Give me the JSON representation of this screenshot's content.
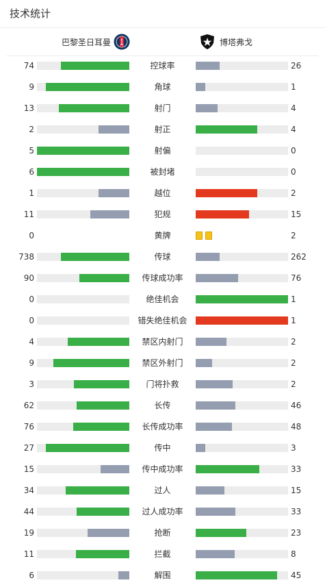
{
  "header": {
    "title": "技术统计"
  },
  "teams": {
    "home": {
      "name": "巴黎圣日耳曼"
    },
    "away": {
      "name": "博塔弗戈"
    }
  },
  "colors": {
    "green": "#3aaf47",
    "grey": "#959eb0",
    "red": "#e3391f",
    "track": "#ececec",
    "yellow": "#f6c21a"
  },
  "stats": [
    {
      "label": "控球率",
      "home": "74",
      "away": "26",
      "homeShare": 0.74,
      "awayShare": 0.26,
      "homeColor": "green",
      "awayColor": "grey"
    },
    {
      "label": "角球",
      "home": "9",
      "away": "1",
      "homeShare": 0.9,
      "awayShare": 0.1,
      "homeColor": "green",
      "awayColor": "grey"
    },
    {
      "label": "射门",
      "home": "13",
      "away": "4",
      "homeShare": 0.76,
      "awayShare": 0.24,
      "homeColor": "green",
      "awayColor": "grey"
    },
    {
      "label": "射正",
      "home": "2",
      "away": "4",
      "homeShare": 0.33,
      "awayShare": 0.67,
      "homeColor": "grey",
      "awayColor": "green"
    },
    {
      "label": "射偏",
      "home": "5",
      "away": "0",
      "homeShare": 1.0,
      "awayShare": 0.0,
      "homeColor": "green",
      "awayColor": "grey"
    },
    {
      "label": "被封堵",
      "home": "6",
      "away": "0",
      "homeShare": 1.0,
      "awayShare": 0.0,
      "homeColor": "green",
      "awayColor": "grey"
    },
    {
      "label": "越位",
      "home": "1",
      "away": "2",
      "homeShare": 0.33,
      "awayShare": 0.67,
      "homeColor": "grey",
      "awayColor": "red"
    },
    {
      "label": "犯规",
      "home": "11",
      "away": "15",
      "homeShare": 0.42,
      "awayShare": 0.58,
      "homeColor": "grey",
      "awayColor": "red"
    },
    {
      "label": "黄牌",
      "home": "0",
      "away": "2",
      "cards": 2
    },
    {
      "label": "传球",
      "home": "738",
      "away": "262",
      "homeShare": 0.74,
      "awayShare": 0.26,
      "homeColor": "green",
      "awayColor": "grey"
    },
    {
      "label": "传球成功率",
      "home": "90",
      "away": "76",
      "homeShare": 0.54,
      "awayShare": 0.46,
      "homeColor": "green",
      "awayColor": "grey"
    },
    {
      "label": "绝佳机会",
      "home": "0",
      "away": "1",
      "homeShare": 0.0,
      "awayShare": 1.0,
      "homeColor": "grey",
      "awayColor": "green"
    },
    {
      "label": "错失绝佳机会",
      "home": "0",
      "away": "1",
      "homeShare": 0.0,
      "awayShare": 1.0,
      "homeColor": "grey",
      "awayColor": "red"
    },
    {
      "label": "禁区内射门",
      "home": "4",
      "away": "2",
      "homeShare": 0.67,
      "awayShare": 0.33,
      "homeColor": "green",
      "awayColor": "grey"
    },
    {
      "label": "禁区外射门",
      "home": "9",
      "away": "2",
      "homeShare": 0.82,
      "awayShare": 0.18,
      "homeColor": "green",
      "awayColor": "grey"
    },
    {
      "label": "门将扑救",
      "home": "3",
      "away": "2",
      "homeShare": 0.6,
      "awayShare": 0.4,
      "homeColor": "green",
      "awayColor": "grey"
    },
    {
      "label": "长传",
      "home": "62",
      "away": "46",
      "homeShare": 0.57,
      "awayShare": 0.43,
      "homeColor": "green",
      "awayColor": "grey"
    },
    {
      "label": "长传成功率",
      "home": "76",
      "away": "48",
      "homeShare": 0.61,
      "awayShare": 0.39,
      "homeColor": "green",
      "awayColor": "grey"
    },
    {
      "label": "传中",
      "home": "27",
      "away": "3",
      "homeShare": 0.9,
      "awayShare": 0.1,
      "homeColor": "green",
      "awayColor": "grey"
    },
    {
      "label": "传中成功率",
      "home": "15",
      "away": "33",
      "homeShare": 0.31,
      "awayShare": 0.69,
      "homeColor": "grey",
      "awayColor": "green"
    },
    {
      "label": "过人",
      "home": "34",
      "away": "15",
      "homeShare": 0.69,
      "awayShare": 0.31,
      "homeColor": "green",
      "awayColor": "grey"
    },
    {
      "label": "过人成功率",
      "home": "44",
      "away": "33",
      "homeShare": 0.57,
      "awayShare": 0.43,
      "homeColor": "green",
      "awayColor": "grey"
    },
    {
      "label": "抢断",
      "home": "19",
      "away": "23",
      "homeShare": 0.45,
      "awayShare": 0.55,
      "homeColor": "grey",
      "awayColor": "green"
    },
    {
      "label": "拦截",
      "home": "11",
      "away": "8",
      "homeShare": 0.58,
      "awayShare": 0.42,
      "homeColor": "green",
      "awayColor": "grey"
    },
    {
      "label": "解围",
      "home": "6",
      "away": "45",
      "homeShare": 0.12,
      "awayShare": 0.88,
      "homeColor": "grey",
      "awayColor": "green"
    }
  ]
}
